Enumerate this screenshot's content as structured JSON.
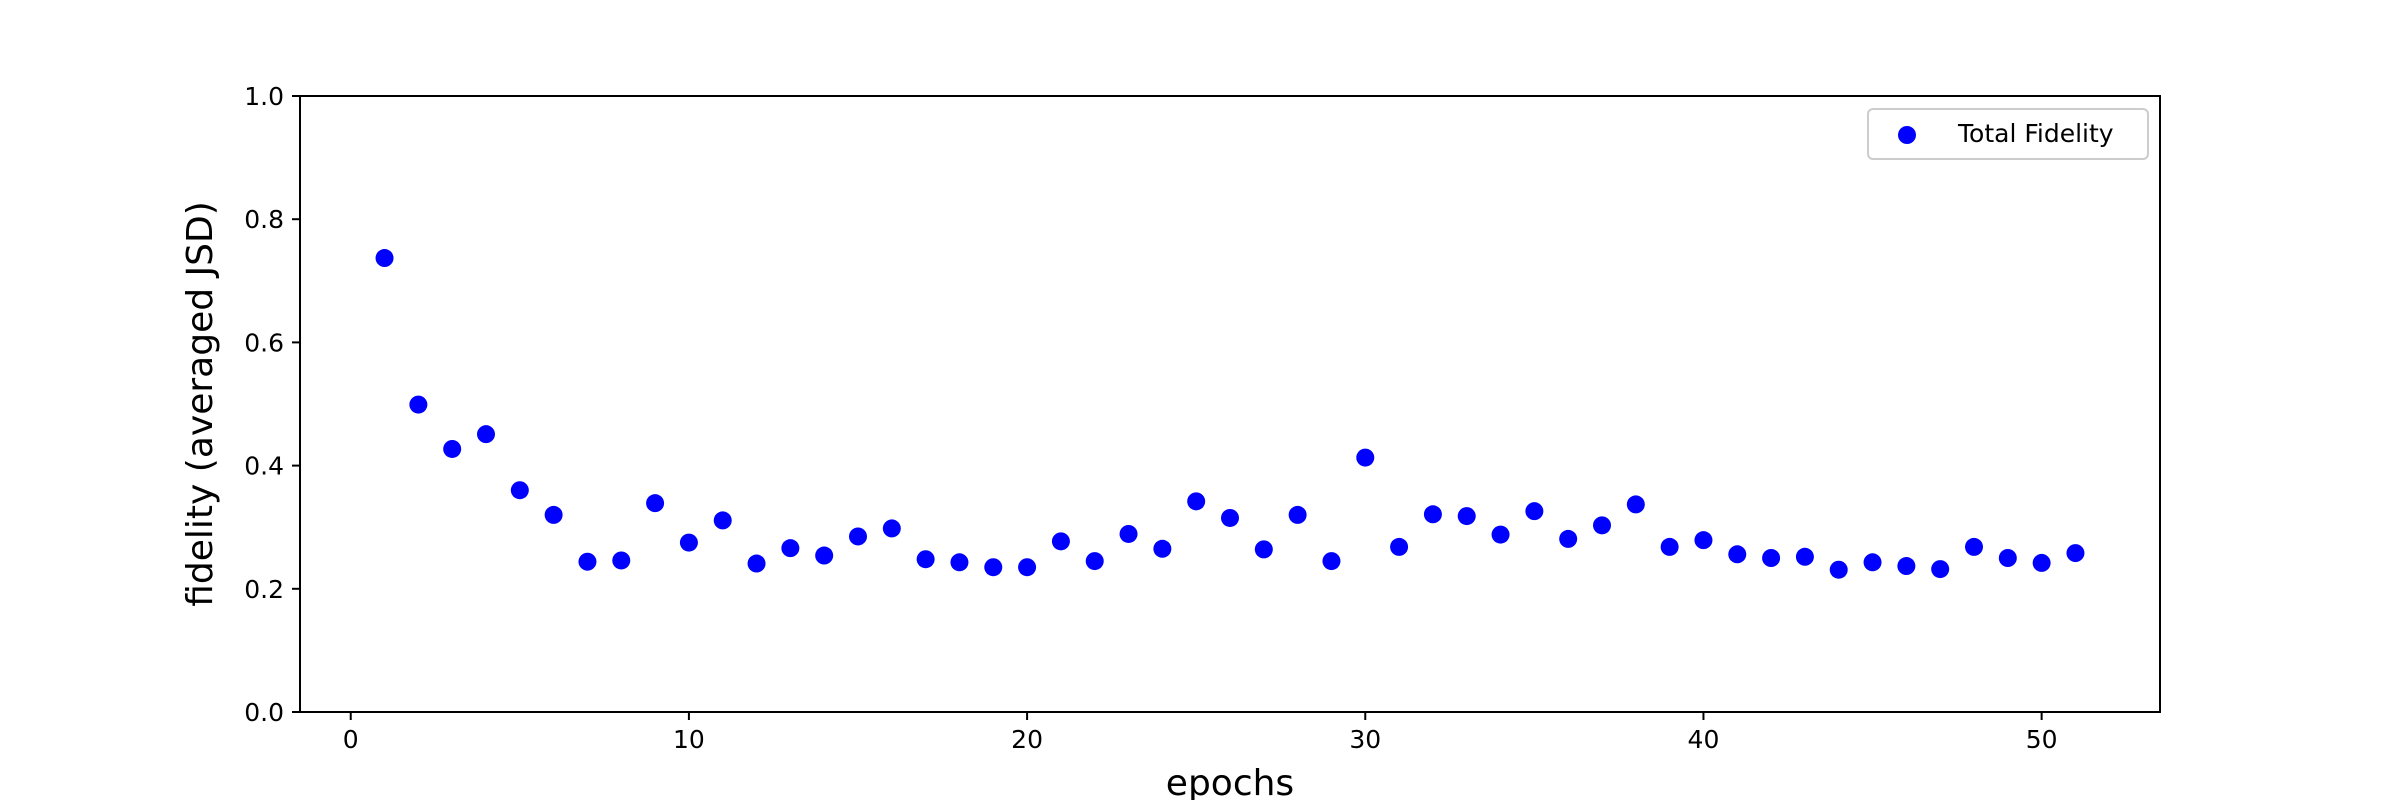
{
  "chart_data": {
    "type": "scatter",
    "xlabel": "epochs",
    "ylabel": "fidelity (averaged JSD)",
    "xlim": [
      -1.5,
      53.5
    ],
    "ylim": [
      0.0,
      1.0
    ],
    "xticks": [
      0,
      10,
      20,
      30,
      40,
      50
    ],
    "yticks": [
      0.0,
      0.2,
      0.4,
      0.6,
      0.8,
      1.0
    ],
    "grid": false,
    "legend_position": "top-right",
    "series": [
      {
        "name": "Total Fidelity",
        "color": "#0000ff",
        "x": [
          1,
          2,
          3,
          4,
          5,
          6,
          7,
          8,
          9,
          10,
          11,
          12,
          13,
          14,
          15,
          16,
          17,
          18,
          19,
          20,
          21,
          22,
          23,
          24,
          25,
          26,
          27,
          28,
          29,
          30,
          31,
          32,
          33,
          34,
          35,
          36,
          37,
          38,
          39,
          40,
          41,
          42,
          43,
          44,
          45,
          46,
          47,
          48,
          49,
          50,
          51
        ],
        "y": [
          0.737,
          0.499,
          0.427,
          0.451,
          0.36,
          0.32,
          0.244,
          0.246,
          0.339,
          0.275,
          0.311,
          0.241,
          0.266,
          0.254,
          0.285,
          0.298,
          0.248,
          0.243,
          0.235,
          0.235,
          0.277,
          0.245,
          0.289,
          0.265,
          0.342,
          0.315,
          0.264,
          0.32,
          0.245,
          0.413,
          0.268,
          0.321,
          0.318,
          0.288,
          0.326,
          0.281,
          0.303,
          0.337,
          0.268,
          0.279,
          0.256,
          0.25,
          0.252,
          0.231,
          0.243,
          0.237,
          0.232,
          0.268,
          0.25,
          0.242,
          0.258
        ]
      }
    ]
  }
}
